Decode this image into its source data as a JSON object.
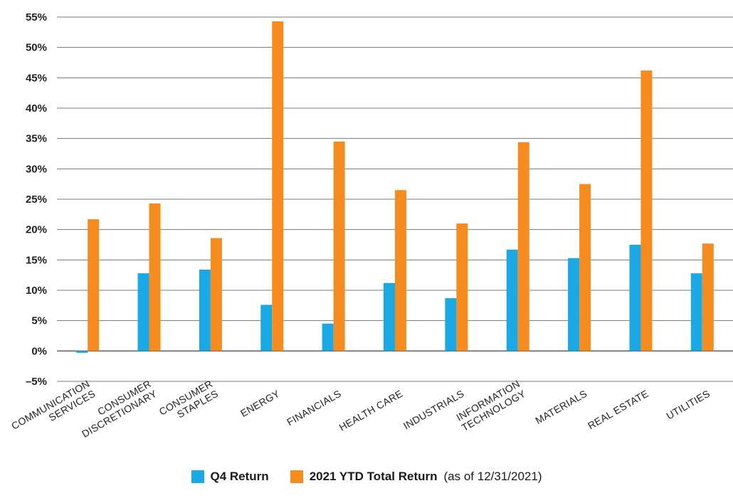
{
  "chart_data": {
    "type": "bar",
    "categories": [
      [
        "COMMUNICATION",
        "SERVICES"
      ],
      [
        "CONSUMER",
        "DISCRETIONARY"
      ],
      [
        "CONSUMER",
        "STAPLES"
      ],
      [
        "ENERGY"
      ],
      [
        "FINANCIALS"
      ],
      [
        "HEALTH CARE"
      ],
      [
        "INDUSTRIALS"
      ],
      [
        "INFORMATION",
        "TECHNOLOGY"
      ],
      [
        "MATERIALS"
      ],
      [
        "REAL ESTATE"
      ],
      [
        "UTILITIES"
      ]
    ],
    "series": [
      {
        "name": "Q4 Return",
        "color": "#1aa9e4",
        "values": [
          -0.3,
          12.8,
          13.4,
          7.6,
          4.5,
          11.2,
          8.7,
          16.7,
          15.3,
          17.5,
          12.8
        ]
      },
      {
        "name": "2021 YTD Total Return",
        "color": "#f68b1f",
        "values": [
          21.7,
          24.3,
          18.6,
          54.3,
          34.5,
          26.5,
          21.0,
          34.4,
          27.5,
          46.2,
          17.7
        ]
      }
    ],
    "ylim": [
      -5,
      55
    ],
    "yticks": [
      -5,
      0,
      5,
      10,
      15,
      20,
      25,
      30,
      35,
      40,
      45,
      50,
      55
    ],
    "ytick_labels": [
      "–5%",
      "0%",
      "5%",
      "10%",
      "15%",
      "20%",
      "25%",
      "30%",
      "35%",
      "40%",
      "45%",
      "50%",
      "55%"
    ],
    "grid": true,
    "legend": {
      "placement": "bottom-center",
      "note": "(as of 12/31/2021)"
    }
  }
}
